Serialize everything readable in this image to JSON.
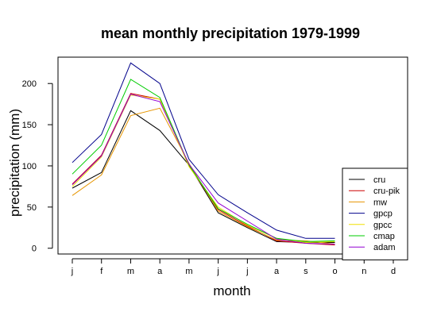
{
  "chart_data": {
    "type": "line",
    "title": "mean monthly precipitation 1979-1999",
    "xlabel": "month",
    "ylabel": "precipitation (mm)",
    "categories": [
      "j",
      "f",
      "m",
      "a",
      "m",
      "j",
      "j",
      "a",
      "s",
      "o",
      "n",
      "d"
    ],
    "yticks": [
      0,
      50,
      100,
      150,
      200
    ],
    "ylim": [
      -7,
      232
    ],
    "grid": false,
    "legend_position": "bottom-right",
    "series": [
      {
        "name": "cru",
        "color": "#000000",
        "values": [
          73,
          92,
          167,
          143,
          101,
          43,
          25,
          8,
          7,
          7,
          null,
          null
        ]
      },
      {
        "name": "cru-pik",
        "color": "#cc0000",
        "values": [
          78,
          113,
          188,
          181,
          100,
          47,
          27,
          9,
          6,
          4,
          null,
          null
        ]
      },
      {
        "name": "mw",
        "color": "#e69500",
        "values": [
          64,
          89,
          161,
          170,
          103,
          45,
          26,
          10,
          9,
          5,
          null,
          null
        ]
      },
      {
        "name": "gpcp",
        "color": "#00008b",
        "values": [
          104,
          138,
          225,
          200,
          108,
          65,
          43,
          22,
          12,
          12,
          null,
          null
        ]
      },
      {
        "name": "gpcc",
        "color": "#f0e000",
        "values": [
          75,
          111,
          186,
          181,
          99,
          50,
          28,
          12,
          7,
          8,
          null,
          null
        ]
      },
      {
        "name": "cmap",
        "color": "#00cc00",
        "values": [
          90,
          125,
          205,
          183,
          101,
          48,
          29,
          12,
          8,
          9,
          null,
          null
        ]
      },
      {
        "name": "adam",
        "color": "#9400d3",
        "values": [
          77,
          112,
          187,
          178,
          102,
          55,
          33,
          11,
          6,
          5,
          null,
          null
        ]
      }
    ]
  }
}
